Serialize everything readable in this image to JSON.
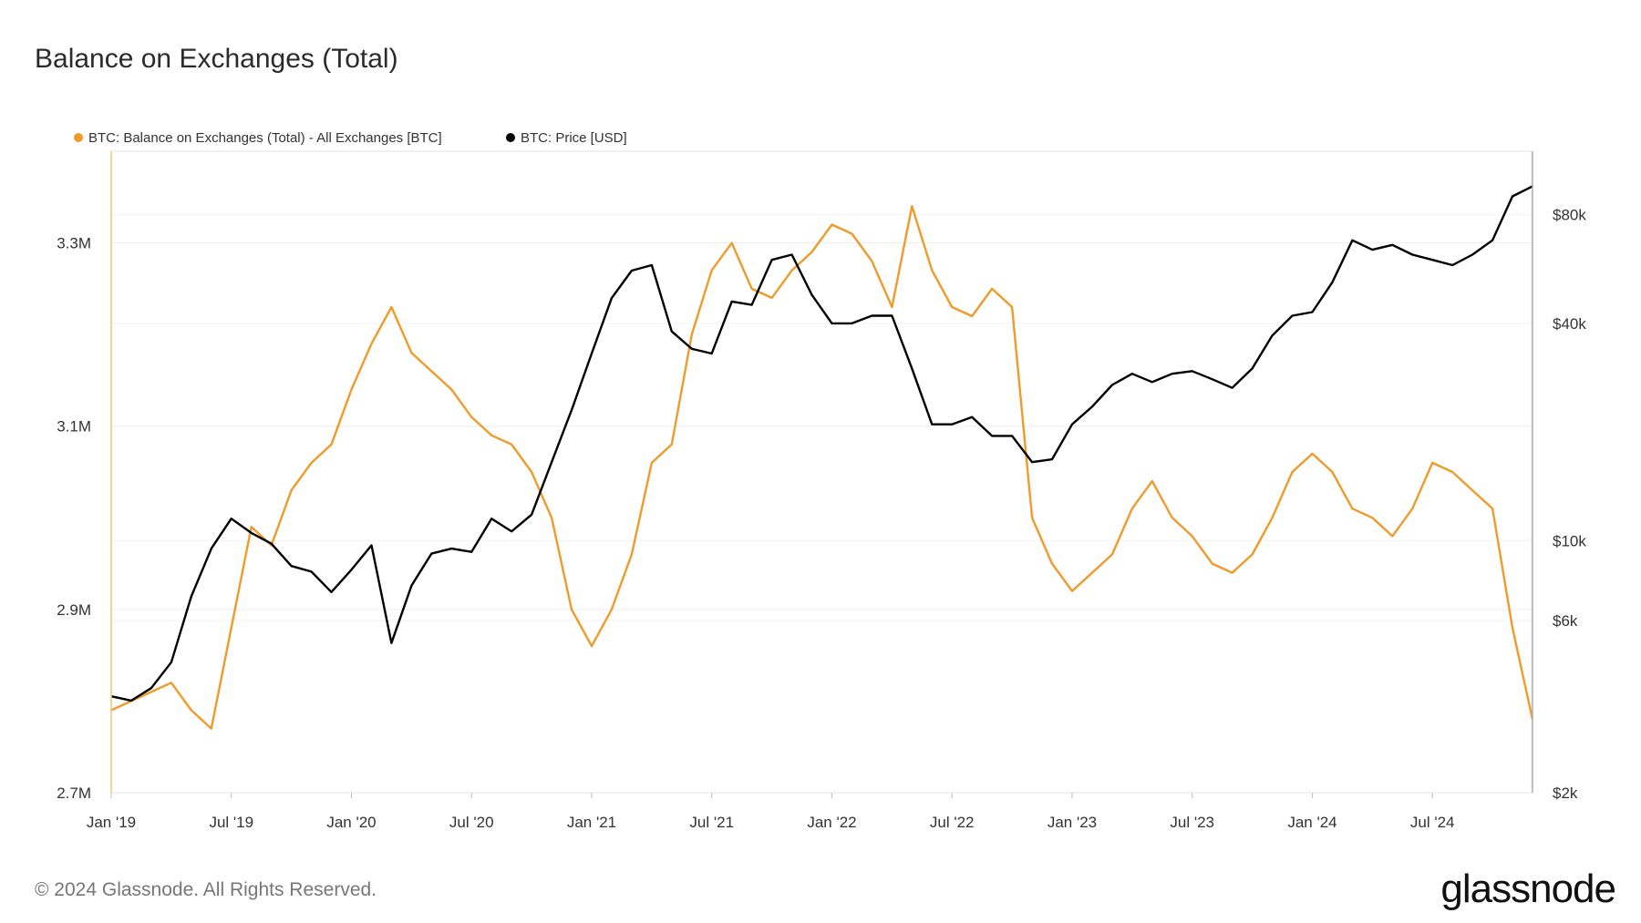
{
  "chart_data": {
    "type": "line",
    "title": "Balance on Exchanges (Total)",
    "legend_position": "top-left",
    "grid": true,
    "x_labels": [
      "Jan '19",
      "Jul '19",
      "Jan '20",
      "Jul '20",
      "Jan '21",
      "Jul '21",
      "Jan '22",
      "Jul '22",
      "Jan '23",
      "Jul '23",
      "Jan '24",
      "Jul '24"
    ],
    "x_range": [
      "2019-01",
      "2024-12"
    ],
    "y_left": {
      "label": "",
      "ticks": [
        "2.7M",
        "2.9M",
        "3.1M",
        "3.3M"
      ],
      "tick_values": [
        2700000,
        2900000,
        3100000,
        3300000
      ],
      "range": [
        2700000,
        3400000
      ]
    },
    "y_right": {
      "label": "",
      "scale": "log",
      "ticks": [
        "$2k",
        "$6k",
        "$10k",
        "$40k",
        "$80k"
      ],
      "tick_values": [
        2000,
        6000,
        10000,
        40000,
        80000
      ],
      "range": [
        2000,
        120000
      ]
    },
    "series": [
      {
        "name": "BTC: Balance on Exchanges (Total) - All Exchanges [BTC]",
        "axis": "left",
        "color": "#f09a29",
        "points": [
          [
            "2019-01",
            2790000
          ],
          [
            "2019-02",
            2800000
          ],
          [
            "2019-03",
            2810000
          ],
          [
            "2019-04",
            2820000
          ],
          [
            "2019-05",
            2790000
          ],
          [
            "2019-06",
            2770000
          ],
          [
            "2019-07",
            2880000
          ],
          [
            "2019-08",
            2990000
          ],
          [
            "2019-09",
            2970000
          ],
          [
            "2019-10",
            3030000
          ],
          [
            "2019-11",
            3060000
          ],
          [
            "2019-12",
            3080000
          ],
          [
            "2020-01",
            3140000
          ],
          [
            "2020-02",
            3190000
          ],
          [
            "2020-03",
            3230000
          ],
          [
            "2020-04",
            3180000
          ],
          [
            "2020-05",
            3160000
          ],
          [
            "2020-06",
            3140000
          ],
          [
            "2020-07",
            3110000
          ],
          [
            "2020-08",
            3090000
          ],
          [
            "2020-09",
            3080000
          ],
          [
            "2020-10",
            3050000
          ],
          [
            "2020-11",
            3000000
          ],
          [
            "2020-12",
            2900000
          ],
          [
            "2021-01",
            2860000
          ],
          [
            "2021-02",
            2900000
          ],
          [
            "2021-03",
            2960000
          ],
          [
            "2021-04",
            3060000
          ],
          [
            "2021-05",
            3080000
          ],
          [
            "2021-06",
            3200000
          ],
          [
            "2021-07",
            3270000
          ],
          [
            "2021-08",
            3300000
          ],
          [
            "2021-09",
            3250000
          ],
          [
            "2021-10",
            3240000
          ],
          [
            "2021-11",
            3270000
          ],
          [
            "2021-12",
            3290000
          ],
          [
            "2022-01",
            3320000
          ],
          [
            "2022-02",
            3310000
          ],
          [
            "2022-03",
            3280000
          ],
          [
            "2022-04",
            3230000
          ],
          [
            "2022-05",
            3340000
          ],
          [
            "2022-06",
            3270000
          ],
          [
            "2022-07",
            3230000
          ],
          [
            "2022-08",
            3220000
          ],
          [
            "2022-09",
            3250000
          ],
          [
            "2022-10",
            3230000
          ],
          [
            "2022-11",
            3000000
          ],
          [
            "2022-12",
            2950000
          ],
          [
            "2023-01",
            2920000
          ],
          [
            "2023-02",
            2940000
          ],
          [
            "2023-03",
            2960000
          ],
          [
            "2023-04",
            3010000
          ],
          [
            "2023-05",
            3040000
          ],
          [
            "2023-06",
            3000000
          ],
          [
            "2023-07",
            2980000
          ],
          [
            "2023-08",
            2950000
          ],
          [
            "2023-09",
            2940000
          ],
          [
            "2023-10",
            2960000
          ],
          [
            "2023-11",
            3000000
          ],
          [
            "2023-12",
            3050000
          ],
          [
            "2024-01",
            3070000
          ],
          [
            "2024-02",
            3050000
          ],
          [
            "2024-03",
            3010000
          ],
          [
            "2024-04",
            3000000
          ],
          [
            "2024-05",
            2980000
          ],
          [
            "2024-06",
            3010000
          ],
          [
            "2024-07",
            3060000
          ],
          [
            "2024-08",
            3050000
          ],
          [
            "2024-09",
            3030000
          ],
          [
            "2024-10",
            3010000
          ],
          [
            "2024-11",
            2880000
          ],
          [
            "2024-12",
            2780000
          ]
        ]
      },
      {
        "name": "BTC: Price [USD]",
        "axis": "right",
        "color": "#000000",
        "points": [
          [
            "2019-01",
            3700
          ],
          [
            "2019-02",
            3600
          ],
          [
            "2019-03",
            3900
          ],
          [
            "2019-04",
            4600
          ],
          [
            "2019-05",
            7000
          ],
          [
            "2019-06",
            9500
          ],
          [
            "2019-07",
            11500
          ],
          [
            "2019-08",
            10500
          ],
          [
            "2019-09",
            9800
          ],
          [
            "2019-10",
            8500
          ],
          [
            "2019-11",
            8200
          ],
          [
            "2019-12",
            7200
          ],
          [
            "2020-01",
            8300
          ],
          [
            "2020-02",
            9700
          ],
          [
            "2020-03",
            5200
          ],
          [
            "2020-04",
            7500
          ],
          [
            "2020-05",
            9200
          ],
          [
            "2020-06",
            9500
          ],
          [
            "2020-07",
            9300
          ],
          [
            "2020-08",
            11500
          ],
          [
            "2020-09",
            10600
          ],
          [
            "2020-10",
            11800
          ],
          [
            "2020-11",
            16500
          ],
          [
            "2020-12",
            23000
          ],
          [
            "2021-01",
            33000
          ],
          [
            "2021-02",
            47000
          ],
          [
            "2021-03",
            56000
          ],
          [
            "2021-04",
            58000
          ],
          [
            "2021-05",
            38000
          ],
          [
            "2021-06",
            34000
          ],
          [
            "2021-07",
            33000
          ],
          [
            "2021-08",
            46000
          ],
          [
            "2021-09",
            45000
          ],
          [
            "2021-10",
            60000
          ],
          [
            "2021-11",
            62000
          ],
          [
            "2021-12",
            48000
          ],
          [
            "2022-01",
            40000
          ],
          [
            "2022-02",
            40000
          ],
          [
            "2022-03",
            42000
          ],
          [
            "2022-04",
            42000
          ],
          [
            "2022-05",
            30000
          ],
          [
            "2022-06",
            21000
          ],
          [
            "2022-07",
            21000
          ],
          [
            "2022-08",
            22000
          ],
          [
            "2022-09",
            19500
          ],
          [
            "2022-10",
            19500
          ],
          [
            "2022-11",
            16500
          ],
          [
            "2022-12",
            16800
          ],
          [
            "2023-01",
            21000
          ],
          [
            "2023-02",
            23500
          ],
          [
            "2023-03",
            27000
          ],
          [
            "2023-04",
            29000
          ],
          [
            "2023-05",
            27500
          ],
          [
            "2023-06",
            29000
          ],
          [
            "2023-07",
            29500
          ],
          [
            "2023-08",
            28000
          ],
          [
            "2023-09",
            26500
          ],
          [
            "2023-10",
            30000
          ],
          [
            "2023-11",
            37000
          ],
          [
            "2023-12",
            42000
          ],
          [
            "2024-01",
            43000
          ],
          [
            "2024-02",
            52000
          ],
          [
            "2024-03",
            68000
          ],
          [
            "2024-04",
            64000
          ],
          [
            "2024-05",
            66000
          ],
          [
            "2024-06",
            62000
          ],
          [
            "2024-07",
            60000
          ],
          [
            "2024-08",
            58000
          ],
          [
            "2024-09",
            62000
          ],
          [
            "2024-10",
            68000
          ],
          [
            "2024-11",
            90000
          ],
          [
            "2024-12",
            96000
          ]
        ]
      }
    ]
  },
  "footer": {
    "copyright": "© 2024 Glassnode. All Rights Reserved.",
    "brand": "glassnode"
  }
}
